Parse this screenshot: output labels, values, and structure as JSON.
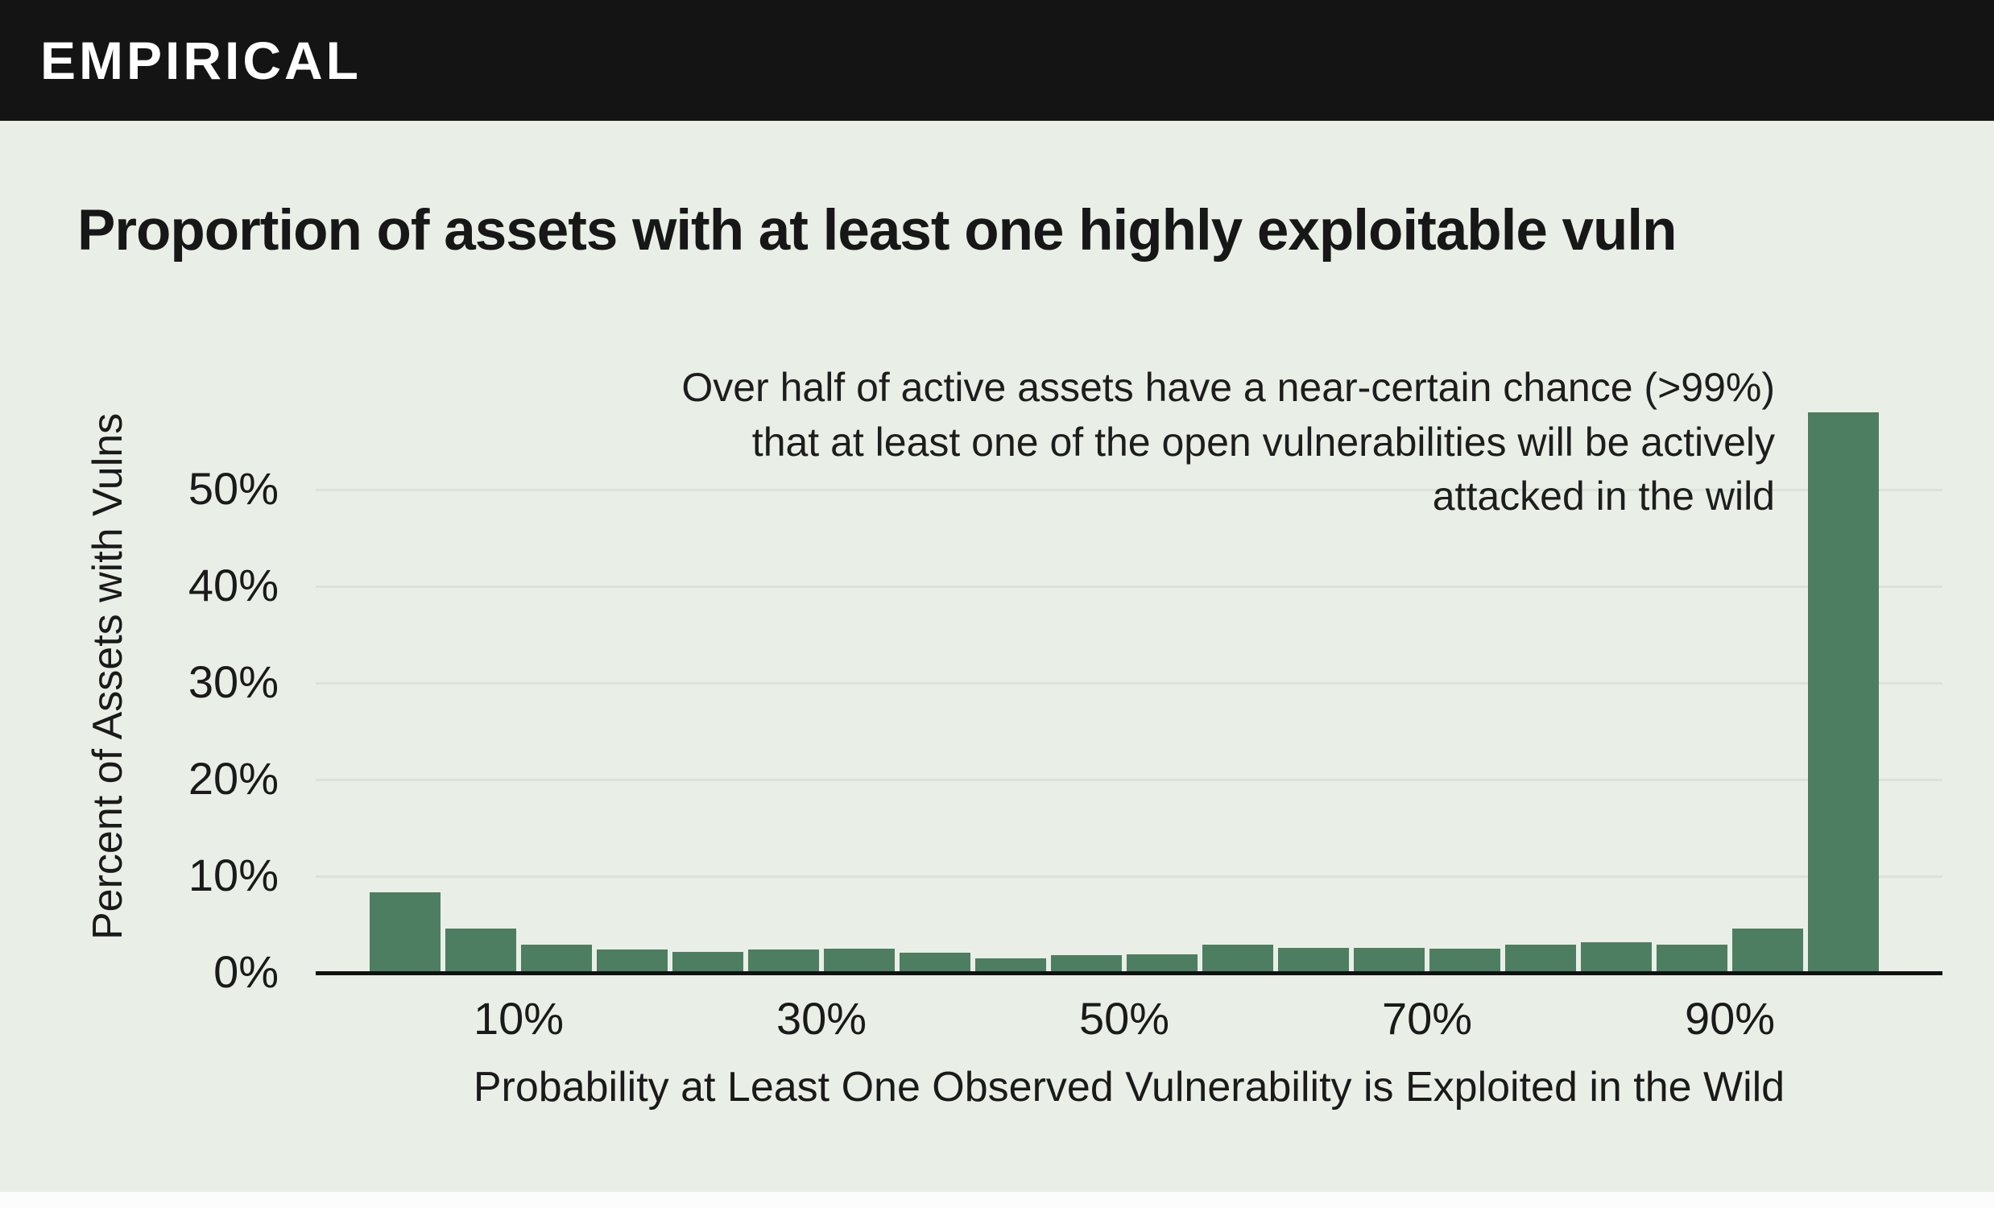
{
  "header": {
    "logo": "EMPIRICAL"
  },
  "title": "Proportion of assets with at least one highly exploitable vuln",
  "annotation": {
    "lines": [
      "Over half of active assets have a near-certain chance (>99%)",
      "that at least one of the open vulnerabilities will be actively",
      "attacked in the wild"
    ]
  },
  "colors": {
    "background": "#e9efe7",
    "header_bar": "#141414",
    "bar": "#4d7e61",
    "grid_line": "#dbe3d9",
    "axis": "#111111",
    "text": "#1a1a1a",
    "logo_text": "#ffffff"
  },
  "chart_data": {
    "type": "bar",
    "title": "Proportion of assets with at least one highly exploitable vuln",
    "xlabel": "Probability at Least One Observed Vulnerability is Exploited in the Wild",
    "ylabel": "Percent of Assets with Vulns",
    "bin_width_percent": 5,
    "bin_labels": [
      "0-5%",
      "5-10%",
      "10-15%",
      "15-20%",
      "20-25%",
      "25-30%",
      "30-35%",
      "35-40%",
      "40-45%",
      "45-50%",
      "50-55%",
      "55-60%",
      "60-65%",
      "65-70%",
      "70-75%",
      "75-80%",
      "80-85%",
      "85-90%",
      "90-95%",
      "95-100%"
    ],
    "values_percent": [
      8.3,
      4.6,
      2.9,
      2.4,
      2.2,
      2.4,
      2.5,
      2.1,
      1.5,
      1.8,
      1.9,
      2.9,
      2.6,
      2.6,
      2.5,
      2.9,
      3.2,
      2.9,
      4.6,
      58
    ],
    "x_ticks": [
      "10%",
      "30%",
      "50%",
      "70%",
      "90%"
    ],
    "x_tick_percents": [
      10,
      30,
      50,
      70,
      90
    ],
    "y_ticks": [
      "0%",
      "10%",
      "20%",
      "30%",
      "40%",
      "50%"
    ],
    "y_tick_percents": [
      0,
      10,
      20,
      30,
      40,
      50
    ],
    "xlim": [
      0,
      100
    ],
    "ylim": [
      0,
      62
    ],
    "grid": true,
    "legend": false,
    "annotation_text": "Over half of active assets have a near-certain chance (>99%) that at least one of the open vulnerabilities will be actively attacked in the wild"
  }
}
